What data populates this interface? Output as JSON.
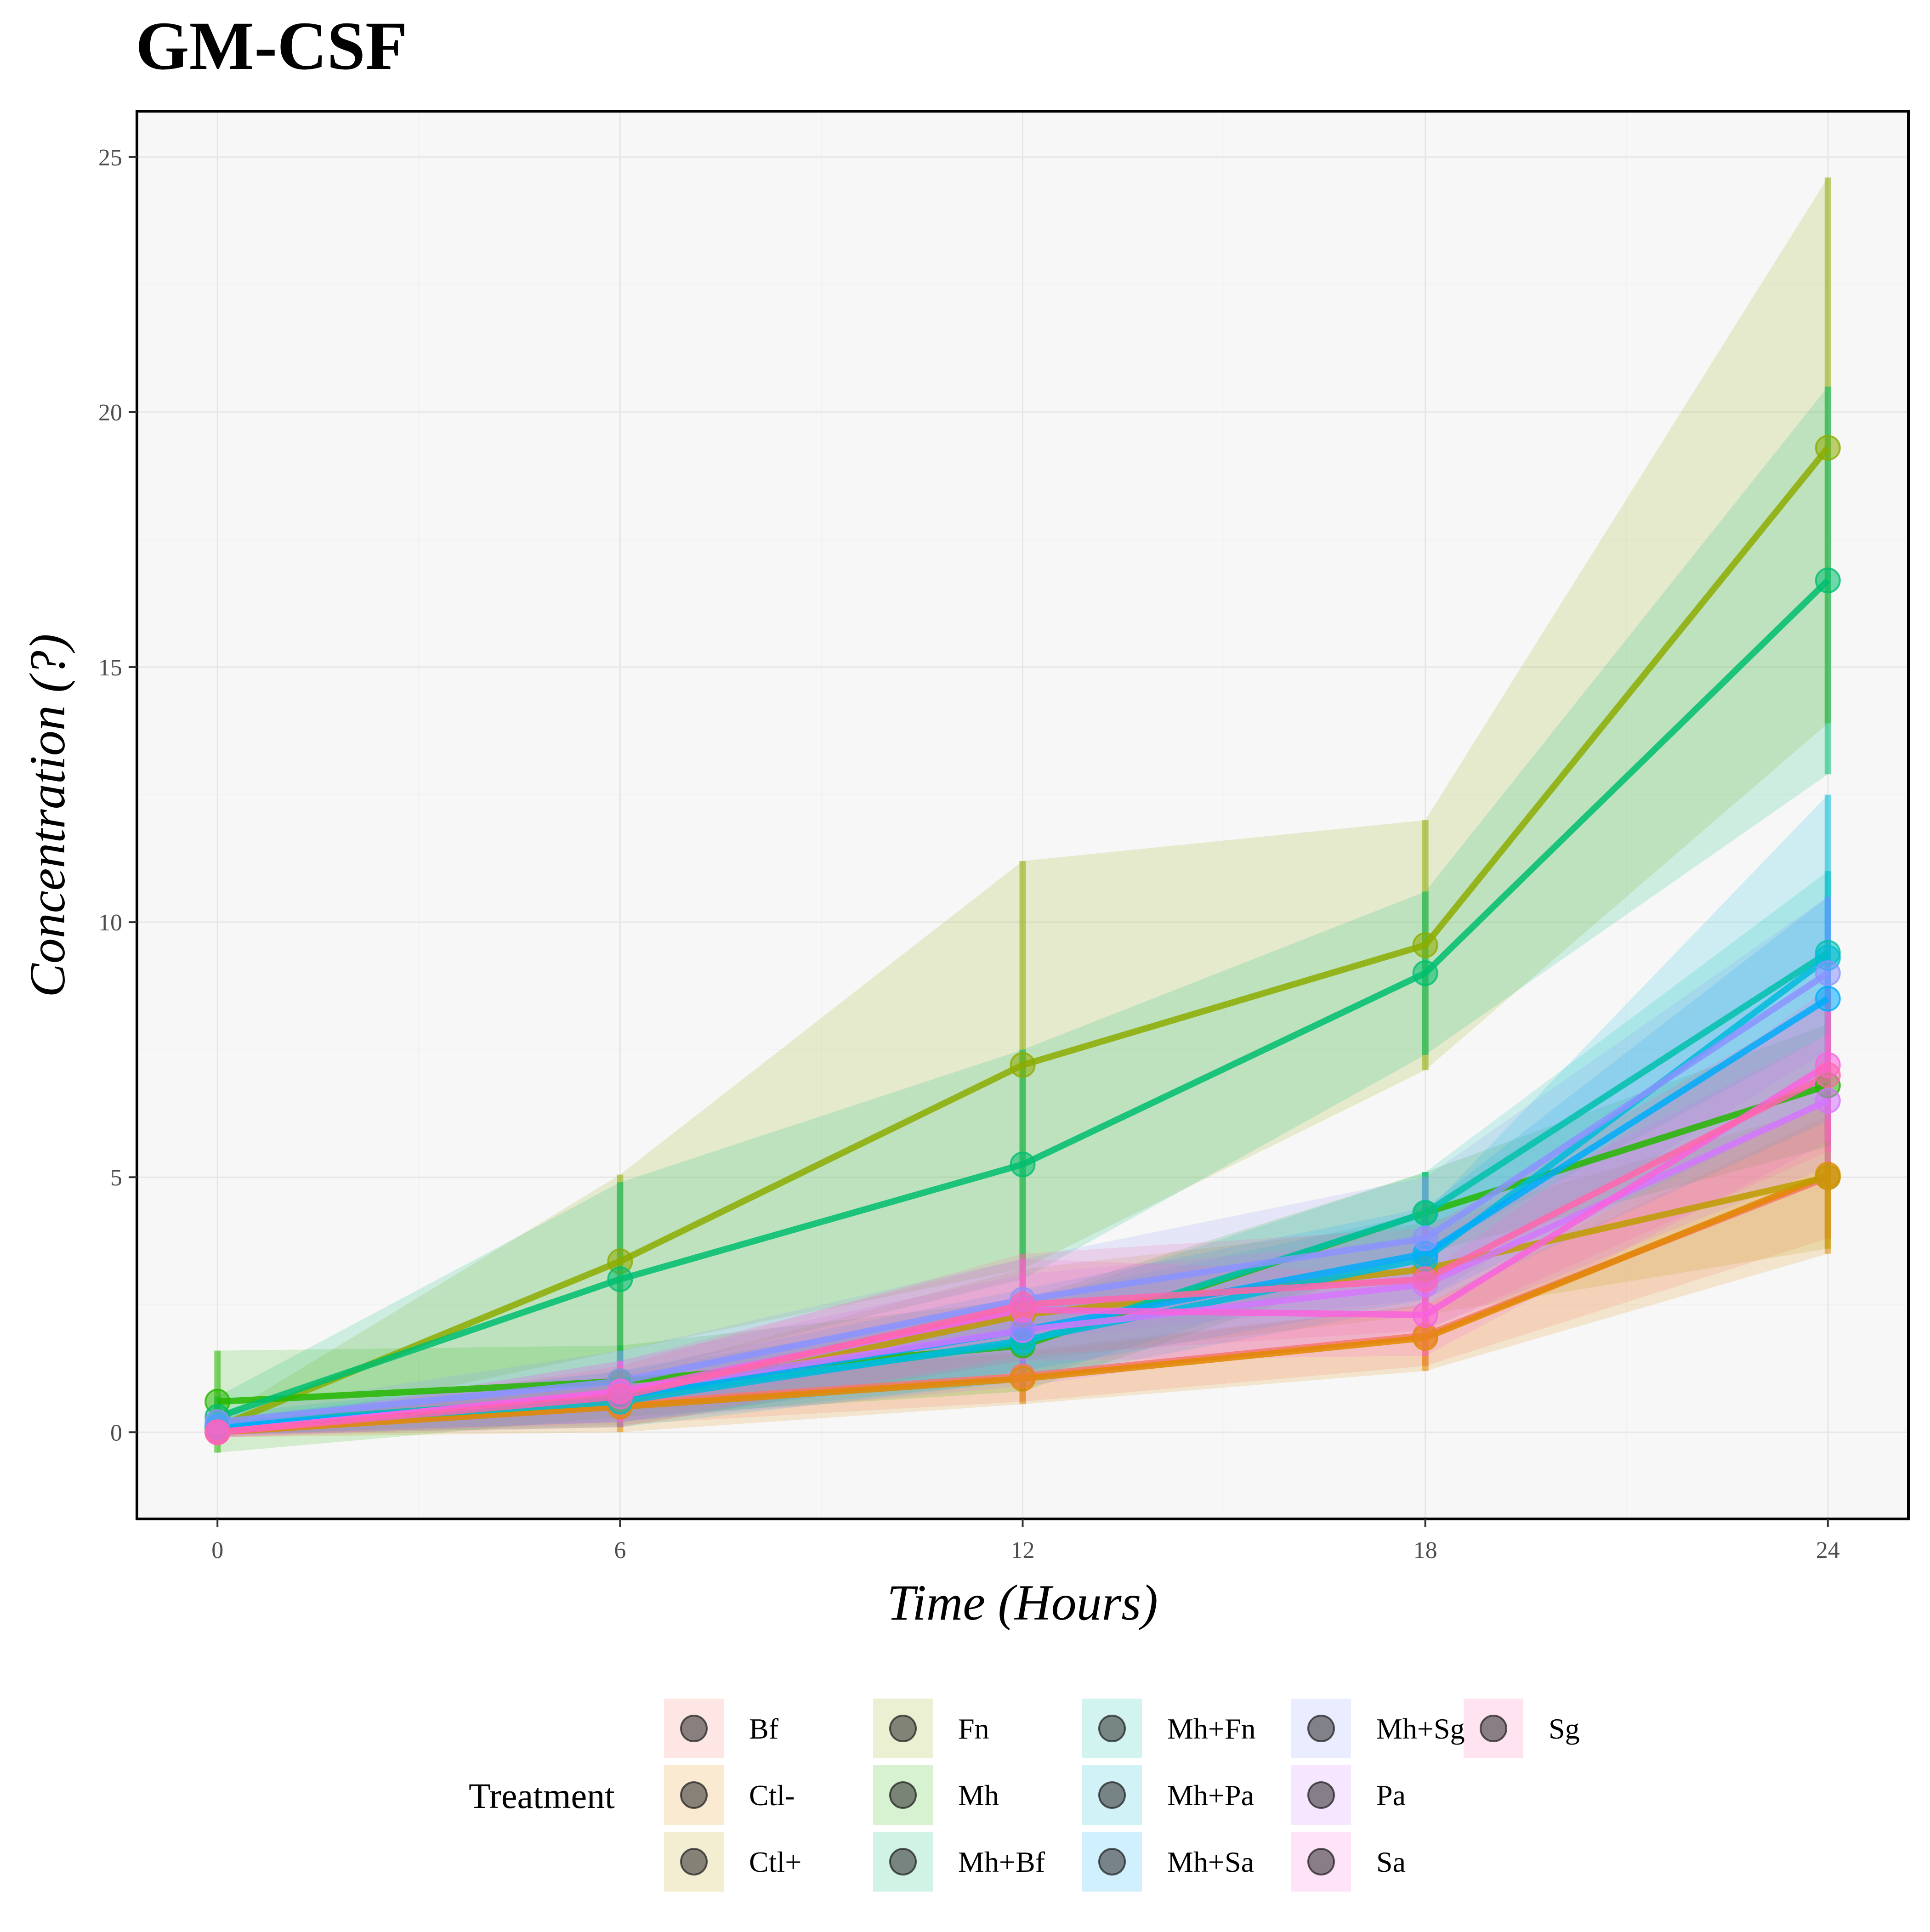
{
  "chart_data": {
    "type": "line",
    "title": "GM-CSF",
    "xlabel": "Time (Hours)",
    "ylabel": "Concentration (?)",
    "x": [
      0,
      6,
      12,
      18,
      24
    ],
    "x_ticks": [
      "0",
      "6",
      "12",
      "18",
      "24"
    ],
    "y_ticks": [
      "0",
      "5",
      "10",
      "15",
      "20",
      "25"
    ],
    "xlim": [
      -1.2,
      25.2
    ],
    "ylim": [
      -1.7,
      25.9
    ],
    "grid": true,
    "legend": {
      "title": "Treatment",
      "placement": "bottom",
      "entries": [
        "Bf",
        "Ctl-",
        "Ctl+",
        "Fn",
        "Mh",
        "Mh+Bf",
        "Mh+Fn",
        "Mh+Pa",
        "Mh+Sa",
        "Mh+Sg",
        "Pa",
        "Sa",
        "Sg"
      ]
    },
    "series": [
      {
        "name": "Bf",
        "color": "#F8766D",
        "values": [
          0.05,
          0.55,
          1.1,
          1.9,
          5.0
        ],
        "lower": [
          -0.05,
          0.15,
          0.6,
          1.3,
          3.8
        ],
        "upper": [
          0.15,
          0.95,
          1.6,
          2.5,
          6.2
        ]
      },
      {
        "name": "Ctl-",
        "color": "#E18A00",
        "values": [
          0.0,
          0.5,
          1.05,
          1.85,
          5.05
        ],
        "lower": [
          -0.1,
          0.0,
          0.55,
          1.2,
          3.5
        ],
        "upper": [
          0.1,
          1.0,
          1.55,
          2.5,
          6.6
        ]
      },
      {
        "name": "Ctl+",
        "color": "#BE9C00",
        "values": [
          0.05,
          0.6,
          2.3,
          3.2,
          5.0
        ],
        "lower": [
          -0.05,
          0.1,
          1.4,
          2.3,
          3.6
        ],
        "upper": [
          0.15,
          1.1,
          3.2,
          4.1,
          6.4
        ]
      },
      {
        "name": "Fn",
        "color": "#8CAB00",
        "values": [
          0.1,
          3.35,
          7.2,
          9.55,
          19.3
        ],
        "lower": [
          -0.05,
          1.6,
          3.2,
          7.1,
          13.9
        ],
        "upper": [
          0.25,
          5.05,
          11.2,
          12.0,
          24.6
        ]
      },
      {
        "name": "Mh",
        "color": "#24B700",
        "values": [
          0.6,
          1.0,
          1.7,
          4.3,
          6.8
        ],
        "lower": [
          -0.4,
          0.3,
          0.8,
          3.5,
          5.6
        ],
        "upper": [
          1.6,
          1.7,
          2.6,
          5.1,
          8.0
        ]
      },
      {
        "name": "Mh+Bf",
        "color": "#00BE70",
        "values": [
          0.3,
          3.0,
          5.25,
          9.0,
          16.7
        ],
        "lower": [
          -0.1,
          1.1,
          3.0,
          7.4,
          12.9
        ],
        "upper": [
          0.7,
          4.9,
          7.5,
          10.6,
          20.5
        ]
      },
      {
        "name": "Mh+Fn",
        "color": "#00C1AB",
        "values": [
          0.15,
          0.7,
          1.75,
          4.3,
          9.4
        ],
        "lower": [
          -0.05,
          0.2,
          1.0,
          3.5,
          7.8
        ],
        "upper": [
          0.35,
          1.2,
          2.5,
          5.1,
          11.0
        ]
      },
      {
        "name": "Mh+Pa",
        "color": "#00BBDA",
        "values": [
          0.1,
          0.6,
          1.8,
          3.4,
          9.3
        ],
        "lower": [
          -0.05,
          0.1,
          1.0,
          2.5,
          6.1
        ],
        "upper": [
          0.25,
          1.1,
          2.6,
          4.3,
          12.5
        ]
      },
      {
        "name": "Mh+Sa",
        "color": "#00ACFC",
        "values": [
          0.1,
          0.7,
          2.0,
          3.5,
          8.5
        ],
        "lower": [
          -0.05,
          0.2,
          1.2,
          2.6,
          6.5
        ],
        "upper": [
          0.25,
          1.2,
          2.8,
          4.4,
          10.5
        ]
      },
      {
        "name": "Mh+Sg",
        "color": "#8B93FF",
        "values": [
          0.2,
          1.0,
          2.6,
          3.8,
          9.0
        ],
        "lower": [
          0.0,
          0.4,
          1.8,
          2.6,
          7.5
        ],
        "upper": [
          0.4,
          1.6,
          3.4,
          5.0,
          10.5
        ]
      },
      {
        "name": "Pa",
        "color": "#D575FE",
        "values": [
          0.0,
          0.8,
          2.0,
          2.9,
          6.5
        ],
        "lower": [
          -0.1,
          0.2,
          0.9,
          2.0,
          5.2
        ],
        "upper": [
          0.1,
          1.4,
          3.1,
          3.8,
          7.8
        ]
      },
      {
        "name": "Sa",
        "color": "#F962DD",
        "values": [
          0.0,
          0.8,
          2.4,
          2.3,
          7.2
        ],
        "lower": [
          -0.1,
          0.2,
          1.4,
          1.5,
          5.7
        ],
        "upper": [
          0.1,
          1.4,
          3.4,
          3.1,
          8.7
        ]
      },
      {
        "name": "Sg",
        "color": "#FF65AC",
        "values": [
          0.0,
          0.7,
          2.5,
          3.0,
          7.0
        ],
        "lower": [
          -0.1,
          0.1,
          1.5,
          2.0,
          5.5
        ],
        "upper": [
          0.1,
          1.3,
          3.5,
          4.0,
          8.5
        ]
      }
    ]
  }
}
